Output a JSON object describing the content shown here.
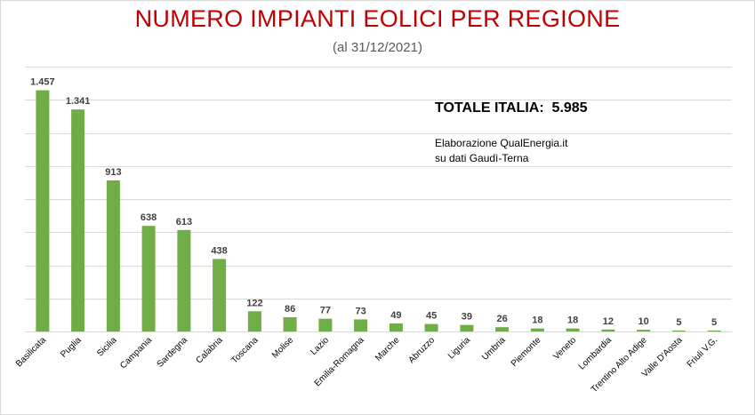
{
  "chart_data": {
    "type": "bar",
    "title": "NUMERO IMPIANTI EOLICI PER REGIONE",
    "subtitle": "(al 31/12/2021)",
    "categories": [
      "Basilicata",
      "Puglia",
      "Sicilia",
      "Campania",
      "Sardegna",
      "Calabria",
      "Toscana",
      "Molise",
      "Lazio",
      "Emilia-Romagna",
      "Marche",
      "Abruzzo",
      "Liguria",
      "Umbria",
      "Piemonte",
      "Veneto",
      "Lombardia",
      "Trentino Alto Adige",
      "Valle D'Aosta",
      "Friuli V.G."
    ],
    "values": [
      1457,
      1341,
      913,
      638,
      613,
      438,
      122,
      86,
      77,
      73,
      49,
      45,
      39,
      26,
      18,
      18,
      12,
      10,
      5,
      5
    ],
    "data_labels": [
      "1.457",
      "1.341",
      "913",
      "638",
      "613",
      "438",
      "122",
      "86",
      "77",
      "73",
      "49",
      "45",
      "39",
      "26",
      "18",
      "18",
      "12",
      "10",
      "5",
      "5"
    ],
    "xlabel": "",
    "ylabel": "",
    "ylim": [
      0,
      1600
    ],
    "grid": true,
    "bar_color": "#70ad47",
    "grid_color": "#d9d9d9"
  },
  "annotations": {
    "total": "TOTALE ITALIA:  5.985",
    "source_line1": "Elaborazione QualEnergia.it",
    "source_line2": "su dati Gaudì-Terna"
  },
  "colors": {
    "title": "#c00000",
    "subtitle": "#595959",
    "value_labels": "#404040"
  }
}
